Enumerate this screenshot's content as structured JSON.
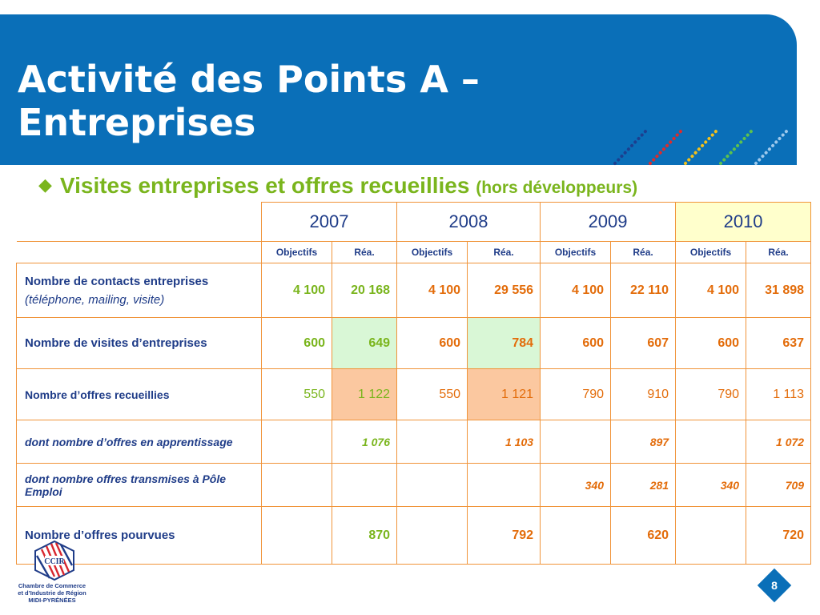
{
  "title": {
    "line1": "Activité des Points A –",
    "line2": "Entreprises"
  },
  "subtitle": {
    "main": "Visites entreprises et offres recueillies",
    "note": "(hors développeurs)"
  },
  "table": {
    "years": [
      "2007",
      "2008",
      "2009",
      "2010"
    ],
    "subheaders": {
      "objectifs": "Objectifs",
      "rea": "Réa."
    },
    "rows": [
      {
        "label": "Nombre de contacts entreprises",
        "note": "(téléphone, mailing, visite)",
        "cells": [
          "4 100",
          "20 168",
          "4 100",
          "29 556",
          "4 100",
          "22 110",
          "4 100",
          "31 898"
        ]
      },
      {
        "label": "Nombre de visites d’entreprises",
        "note": "",
        "cells": [
          "600",
          "649",
          "600",
          "784",
          "600",
          "607",
          "600",
          "637"
        ]
      },
      {
        "label": "Nombre d’offres recueillies",
        "note": "",
        "cells": [
          "550",
          "1 122",
          "550",
          "1 121",
          "790",
          "910",
          "790",
          "1 113"
        ]
      },
      {
        "label": "dont nombre d’offres en apprentissage",
        "note": "",
        "cells": [
          "",
          "1 076",
          "",
          "1 103",
          "",
          "897",
          "",
          "1 072"
        ]
      },
      {
        "label": "dont nombre offres transmises à Pôle Emploi",
        "note": "",
        "cells": [
          "",
          "",
          "",
          "",
          "340",
          "281",
          "340",
          "709"
        ]
      },
      {
        "label": "Nombre d’offres pourvues",
        "note": "",
        "cells": [
          "",
          "870",
          "",
          "792",
          "",
          "620",
          "",
          "720"
        ]
      }
    ]
  },
  "colors": {
    "banner": "#0a6fb8",
    "accent_green": "#7ab51d",
    "accent_orange": "#e36c0a",
    "navy": "#1f3c88"
  },
  "footer": {
    "logo_text": [
      "Chambre de Commerce",
      "et d’Industrie de Région",
      "MIDI-PYRÉNÉES"
    ],
    "page_number": "8"
  }
}
